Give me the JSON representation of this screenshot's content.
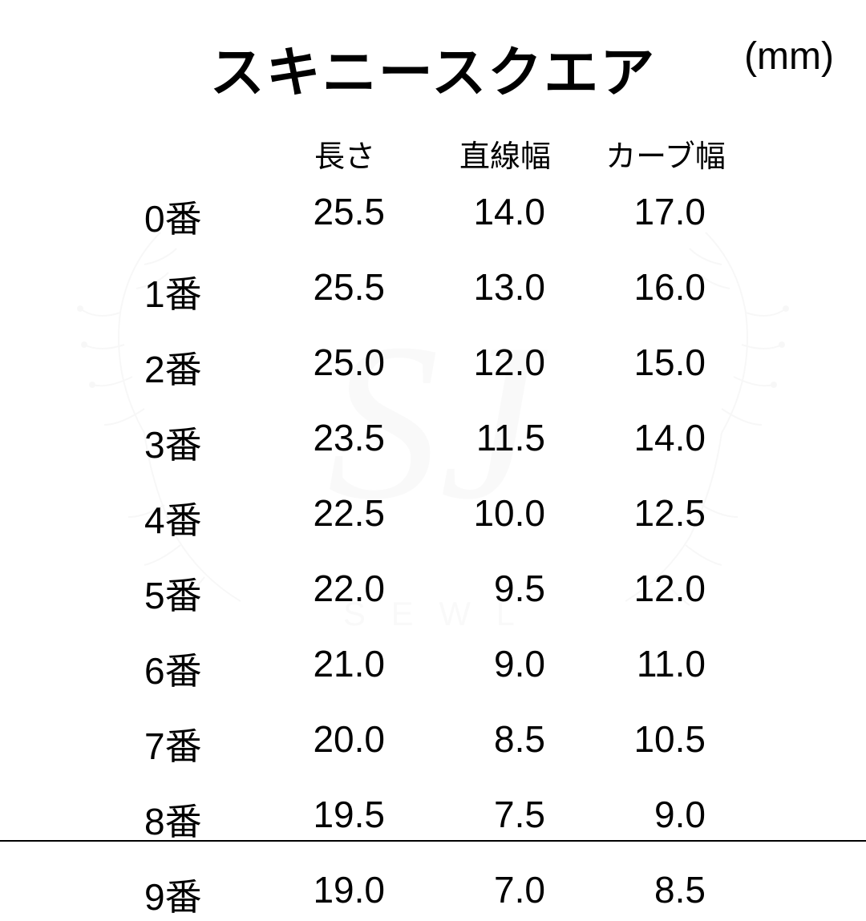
{
  "title": "スキニースクエア",
  "unit": "(mm)",
  "columns": [
    "",
    "長さ",
    "直線幅",
    "カーブ幅"
  ],
  "rows": [
    {
      "label": "0番",
      "length": "25.5",
      "straight": "14.0",
      "curve": "17.0"
    },
    {
      "label": "1番",
      "length": "25.5",
      "straight": "13.0",
      "curve": "16.0"
    },
    {
      "label": "2番",
      "length": "25.0",
      "straight": "12.0",
      "curve": "15.0"
    },
    {
      "label": "3番",
      "length": "23.5",
      "straight": "11.5",
      "curve": "14.0"
    },
    {
      "label": "4番",
      "length": "22.5",
      "straight": "10.0",
      "curve": "12.5"
    },
    {
      "label": "5番",
      "length": "22.0",
      "straight": "9.5",
      "curve": "12.0"
    },
    {
      "label": "6番",
      "length": "21.0",
      "straight": "9.0",
      "curve": "11.0"
    },
    {
      "label": "7番",
      "length": "20.0",
      "straight": "8.5",
      "curve": "10.5"
    },
    {
      "label": "8番",
      "length": "19.5",
      "straight": "7.5",
      "curve": "9.0"
    },
    {
      "label": "9番",
      "length": "19.0",
      "straight": "7.0",
      "curve": "8.5"
    }
  ],
  "style": {
    "background_color": "#ffffff",
    "text_color": "#000000",
    "title_fontsize": 68,
    "unit_fontsize": 48,
    "header_fontsize": 38,
    "cell_fontsize": 46,
    "watermark_opacity": 0.06
  }
}
